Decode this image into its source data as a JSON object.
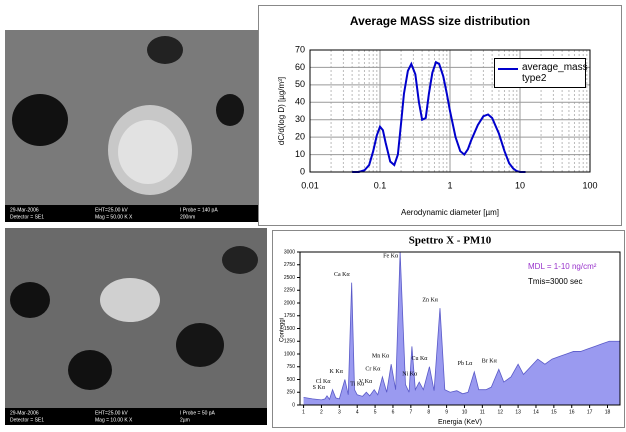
{
  "chart_data": [
    {
      "type": "line",
      "title": "Average MASS size distribution",
      "x_label": "Aerodynamic diameter [µm]",
      "y_label": "dC/d(log D) [µg/m³]",
      "xscale": "log",
      "xlim": [
        0.01,
        100
      ],
      "xticks": [
        0.01,
        0.1,
        1,
        10,
        100
      ],
      "minor_xticks": [
        0.02,
        0.03,
        0.04,
        0.05,
        0.06,
        0.07,
        0.08,
        0.09,
        0.2,
        0.3,
        0.4,
        0.5,
        0.6,
        0.7,
        0.8,
        0.9,
        2,
        3,
        4,
        5,
        6,
        7,
        8,
        9,
        20,
        30,
        40,
        50,
        60,
        70,
        80,
        90
      ],
      "ylim": [
        0,
        70
      ],
      "yticks": [
        0,
        10,
        20,
        30,
        40,
        50,
        60,
        70
      ],
      "grid": true,
      "legend": "upper right",
      "x": [
        0.04,
        0.05,
        0.06,
        0.07,
        0.08,
        0.09,
        0.1,
        0.11,
        0.12,
        0.14,
        0.16,
        0.18,
        0.2,
        0.22,
        0.25,
        0.28,
        0.32,
        0.36,
        0.4,
        0.45,
        0.5,
        0.56,
        0.63,
        0.7,
        0.8,
        0.9,
        1,
        1.2,
        1.4,
        1.6,
        1.8,
        2,
        2.5,
        3,
        3.5,
        4,
        5,
        6,
        7,
        8,
        9,
        10,
        12
      ],
      "series": [
        {
          "name": "average_mass type2",
          "color": "#0000cc",
          "values": [
            0,
            0,
            1,
            4,
            12,
            21,
            26,
            24,
            17,
            6,
            4,
            10,
            28,
            45,
            58,
            62,
            56,
            40,
            30,
            31,
            45,
            57,
            63,
            62,
            55,
            45,
            35,
            20,
            12,
            10,
            13,
            18,
            27,
            32,
            33,
            31,
            22,
            12,
            5,
            2,
            0.5,
            0,
            0
          ]
        }
      ]
    },
    {
      "type": "area",
      "title": "Spettro X - PM10",
      "x_label": "Energia (KeV)",
      "y_label": "Conteggi",
      "note": "MDL = 1-10 ng/cm²",
      "note2": "Tmis=3000 sec",
      "xlim": [
        0.8,
        18.7
      ],
      "xticks": [
        1,
        2,
        3,
        4,
        5,
        6,
        7,
        8,
        9,
        10,
        11,
        12,
        13,
        14,
        15,
        16,
        17,
        18
      ],
      "ylim": [
        0,
        3000
      ],
      "yticks": [
        0,
        250,
        500,
        750,
        1000,
        1250,
        1500,
        1750,
        2000,
        2250,
        2500,
        2750,
        3000
      ],
      "color": "#9a9af0",
      "x": [
        1.0,
        1.5,
        2.0,
        2.2,
        2.31,
        2.45,
        2.62,
        2.8,
        3.0,
        3.31,
        3.5,
        3.69,
        3.85,
        4.0,
        4.3,
        4.51,
        4.7,
        4.95,
        5.15,
        5.41,
        5.65,
        5.9,
        6.15,
        6.4,
        6.7,
        6.9,
        7.06,
        7.25,
        7.47,
        7.7,
        8.04,
        8.3,
        8.63,
        8.9,
        9.2,
        9.57,
        9.9,
        10.2,
        10.55,
        10.8,
        11.2,
        11.5,
        11.92,
        12.2,
        12.6,
        13.0,
        13.3,
        13.7,
        14.1,
        14.5,
        14.9,
        15.3,
        15.7,
        16.1,
        16.5,
        16.9,
        17.3,
        17.7,
        18.1,
        18.5,
        18.7
      ],
      "values": [
        150,
        120,
        100,
        120,
        180,
        110,
        300,
        140,
        120,
        500,
        200,
        2400,
        300,
        200,
        170,
        250,
        180,
        300,
        200,
        550,
        250,
        800,
        300,
        3000,
        400,
        250,
        1150,
        300,
        450,
        300,
        750,
        280,
        1900,
        300,
        250,
        280,
        220,
        250,
        650,
        300,
        300,
        350,
        700,
        450,
        550,
        800,
        600,
        750,
        900,
        800,
        900,
        950,
        1000,
        1050,
        1050,
        1100,
        1150,
        1200,
        1250,
        1250,
        1250
      ],
      "peak_labels": [
        {
          "label": "S Kα",
          "x": 2.31,
          "y": 180
        },
        {
          "label": "Cl Kα",
          "x": 2.62,
          "y": 300
        },
        {
          "label": "K Kα",
          "x": 3.31,
          "y": 500
        },
        {
          "label": "Ca Kα",
          "x": 3.69,
          "y": 2400
        },
        {
          "label": "Ti Kα",
          "x": 4.51,
          "y": 250
        },
        {
          "label": "V Kα",
          "x": 4.95,
          "y": 300
        },
        {
          "label": "Cr Kα",
          "x": 5.41,
          "y": 550
        },
        {
          "label": "Mn Kα",
          "x": 5.9,
          "y": 800
        },
        {
          "label": "Fe Kα",
          "x": 6.4,
          "y": 3000
        },
        {
          "label": "Ni Kα",
          "x": 7.47,
          "y": 450
        },
        {
          "label": "Cu Kα",
          "x": 8.04,
          "y": 750
        },
        {
          "label": "Zn Kα",
          "x": 8.63,
          "y": 1900
        },
        {
          "label": "Pb Lα",
          "x": 10.55,
          "y": 650
        },
        {
          "label": "Br Kα",
          "x": 11.92,
          "y": 700
        }
      ]
    }
  ],
  "images": [
    {
      "caption": [
        "29-Mar-2006",
        "EHT=25.00 kV",
        "I Probe = 140 pA",
        "Detector = SE1",
        "Mag = 50.00 K X",
        "200nm"
      ]
    },
    {
      "caption": [
        "29-Mar-2006",
        "EHT=25.00 kV",
        "I Probe = 50 pA",
        "Detector = SE1",
        "Mag = 10.00 K X",
        "2µm"
      ]
    }
  ]
}
